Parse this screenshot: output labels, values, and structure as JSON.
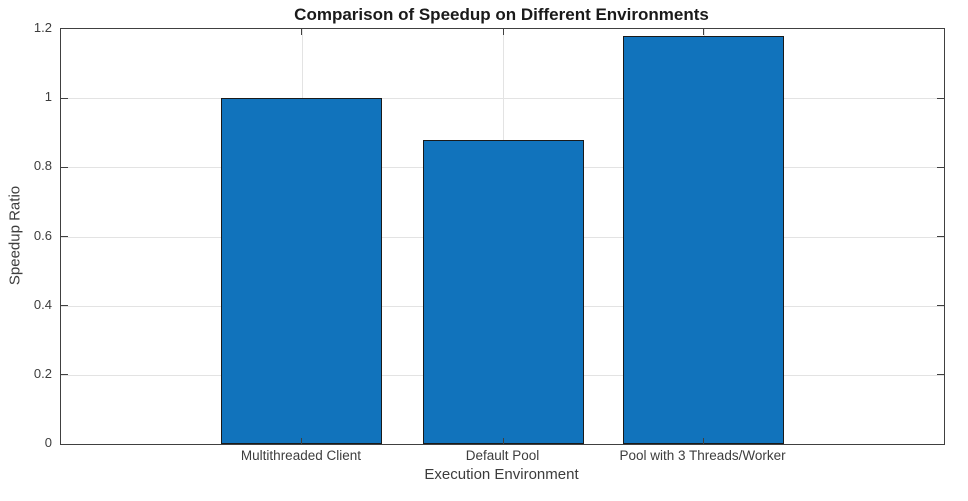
{
  "figure": {
    "title": "Comparison of Speedup on Different Environments"
  },
  "chart_data": {
    "type": "bar",
    "title": "Comparison of Speedup on Different Environments",
    "categories": [
      "Multithreaded Client",
      "Default Pool",
      "Pool with 3 Threads/Worker"
    ],
    "values": [
      1.0,
      0.88,
      1.18
    ],
    "xlabel": "Execution Environment",
    "ylabel": "Speedup Ratio",
    "ylim": [
      0,
      1.2
    ],
    "yticks": [
      0,
      0.2,
      0.4,
      0.6,
      0.8,
      1,
      1.2
    ],
    "ytick_labels": [
      "0",
      "0.2",
      "0.4",
      "0.6",
      "0.8",
      "1",
      "1.2"
    ],
    "grid": true,
    "legend": "none",
    "bar_color": "#1173BC",
    "bar_edge_color": "#1a1a1a",
    "axis_color": "#404040",
    "grid_color": "#e3e3e3",
    "layout": {
      "bar_centers_frac": [
        0.2729,
        0.5011,
        0.7277
      ],
      "bar_width_frac": 0.1823
    }
  }
}
